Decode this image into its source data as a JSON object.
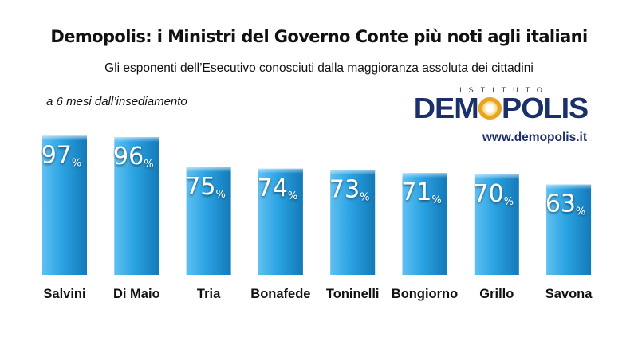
{
  "header": {
    "title": "Demopolis: i Ministri del Governo Conte più noti agli italiani",
    "subtitle": "Gli esponenti dell’Esecutivo conosciuti dalla maggioranza assoluta dei cittadini",
    "note": "a 6 mesi dall’insediamento"
  },
  "branding": {
    "logo_top": "ISTITUTO",
    "logo_left": "DEM",
    "logo_right": "POLIS",
    "url": "www.demopolis.it"
  },
  "colors": {
    "bar_light": "#5fc0f2",
    "bar_mid": "#2aa2e2",
    "bar_dark": "#1479b8",
    "brand": "#1b2f6b",
    "sun": "#e8a321"
  },
  "chart_data": {
    "type": "bar",
    "categories": [
      "Salvini",
      "Di Maio",
      "Tria",
      "Bonafede",
      "Toninelli",
      "Bongiorno",
      "Grillo",
      "Savona"
    ],
    "values": [
      97,
      96,
      75,
      74,
      73,
      71,
      70,
      63
    ],
    "unit": "%",
    "ylim": [
      0,
      100
    ],
    "grid": false,
    "legend": "none"
  }
}
